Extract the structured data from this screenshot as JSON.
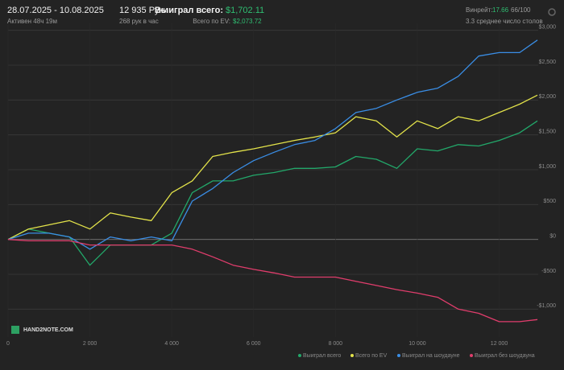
{
  "header": {
    "dates": "28.07.2025 - 10.08.2025",
    "active": "Активен 48ч 19м",
    "hands": "12 935 Руки",
    "per_hour": "268 рук в час",
    "won_label": "Выиграл всего:",
    "won_value": "$1,702.11",
    "ev_label": "Всего по EV:",
    "ev_value": "$2,073.72",
    "wr_label": "Винрейт:",
    "wr_value": "17.66",
    "wr_score": "66/100",
    "tables": "3.3 среднее число столов",
    "watermark": "HAND2NOTE.COM"
  },
  "chart_data": {
    "type": "line",
    "x": [
      0,
      500,
      1000,
      1500,
      2000,
      2500,
      3000,
      3500,
      4000,
      4500,
      5000,
      5500,
      6000,
      6500,
      7000,
      7500,
      8000,
      8500,
      9000,
      9500,
      10000,
      10500,
      11000,
      11500,
      12000,
      12500,
      12935
    ],
    "series": [
      {
        "name": "Выиграл всего",
        "color": "#22a86a",
        "values": [
          0,
          150,
          90,
          35,
          -370,
          -80,
          -80,
          -80,
          90,
          670,
          840,
          840,
          920,
          960,
          1020,
          1020,
          1040,
          1190,
          1150,
          1020,
          1300,
          1270,
          1360,
          1340,
          1420,
          1530,
          1700
        ]
      },
      {
        "name": "Всего по EV",
        "color": "#e3e34a",
        "values": [
          0,
          150,
          210,
          270,
          150,
          380,
          320,
          270,
          670,
          840,
          1190,
          1250,
          1300,
          1360,
          1420,
          1470,
          1530,
          1760,
          1700,
          1470,
          1700,
          1590,
          1760,
          1700,
          1820,
          1940,
          2070
        ]
      },
      {
        "name": "Выиграл на шоудауне",
        "color": "#3a8ee6",
        "values": [
          0,
          90,
          90,
          35,
          -140,
          35,
          -20,
          35,
          -20,
          550,
          730,
          960,
          1130,
          1250,
          1360,
          1420,
          1590,
          1820,
          1880,
          2000,
          2110,
          2170,
          2340,
          2630,
          2680,
          2680,
          2860
        ]
      },
      {
        "name": "Выиграл без шоудауна",
        "color": "#e03d6c",
        "values": [
          0,
          -20,
          -20,
          -20,
          -80,
          -80,
          -80,
          -80,
          -80,
          -140,
          -250,
          -370,
          -430,
          -480,
          -540,
          -540,
          -540,
          -600,
          -660,
          -720,
          -770,
          -830,
          -1000,
          -1060,
          -1180,
          -1180,
          -1150
        ]
      }
    ],
    "xlim": [
      0,
      12935
    ],
    "xticks": [
      0,
      {
        "value": 2000,
        "label": "2 000"
      },
      {
        "value": 4000,
        "label": "4 000"
      },
      {
        "value": 6000,
        "label": "6 000"
      },
      {
        "value": 8000,
        "label": "8 000"
      },
      {
        "value": 10000,
        "label": "10 000"
      },
      {
        "value": 12000,
        "label": "12 000"
      }
    ],
    "ylim": [
      -1400,
      3100
    ],
    "yticks": [
      {
        "value": -1000,
        "label": "-$1,000"
      },
      {
        "value": -500,
        "label": "-$500"
      },
      {
        "value": 0,
        "label": "$0"
      },
      {
        "value": 500,
        "label": "$500"
      },
      {
        "value": 1000,
        "label": "$1,000"
      },
      {
        "value": 1500,
        "label": "$1,500"
      },
      {
        "value": 2000,
        "label": "$2,000"
      },
      {
        "value": 2500,
        "label": "$2,500"
      },
      {
        "value": 3000,
        "label": "$3,000"
      }
    ],
    "grid": true
  }
}
